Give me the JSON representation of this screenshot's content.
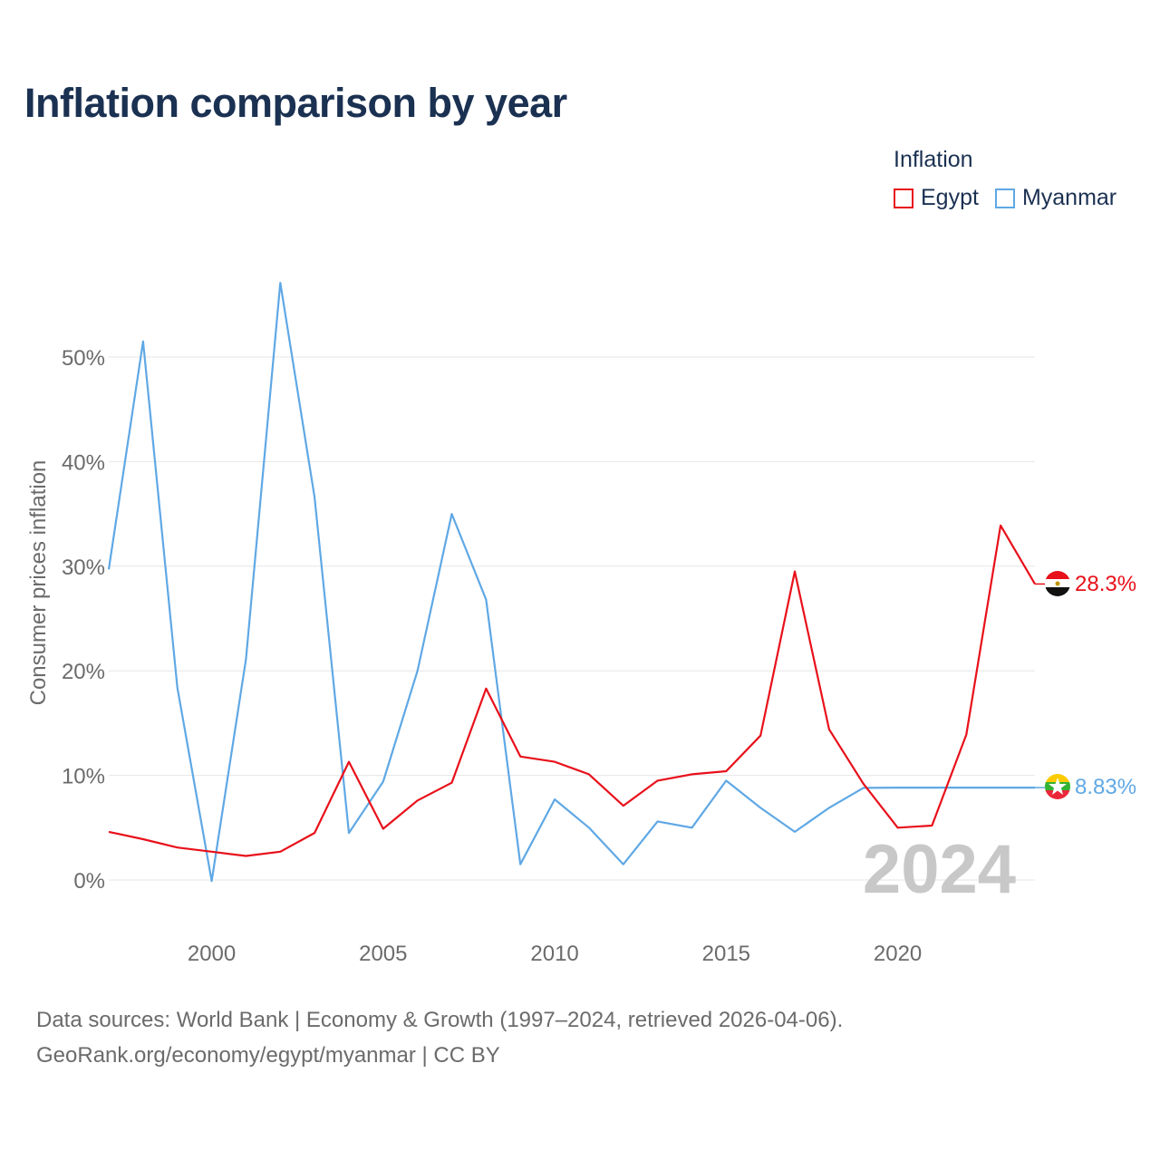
{
  "title": "Inflation comparison by year",
  "legend": {
    "title": "Inflation",
    "items": [
      {
        "name": "Egypt",
        "color": "#e8101a"
      },
      {
        "name": "Myanmar",
        "color": "#5fa8e5"
      }
    ]
  },
  "footer": {
    "line1": "Data sources: World Bank | Economy & Growth (1997–2024, retrieved 2026-04-06).",
    "line2": "GeoRank.org/economy/egypt/myanmar | CC BY"
  },
  "chart_data": {
    "type": "line",
    "ylabel": "Consumer prices inflation",
    "xlabel": "",
    "xlim": [
      1997,
      2024
    ],
    "ylim": [
      -3,
      60
    ],
    "yticks": [
      0,
      10,
      20,
      30,
      40,
      50
    ],
    "ytick_labels": [
      "0%",
      "10%",
      "20%",
      "30%",
      "40%",
      "50%"
    ],
    "xticks": [
      2000,
      2005,
      2010,
      2015,
      2020
    ],
    "xtick_labels": [
      "2000",
      "2005",
      "2010",
      "2015",
      "2020"
    ],
    "year_watermark": "2024",
    "x": [
      1997,
      1998,
      1999,
      2000,
      2001,
      2002,
      2003,
      2004,
      2005,
      2006,
      2007,
      2008,
      2009,
      2010,
      2011,
      2012,
      2013,
      2014,
      2015,
      2016,
      2017,
      2018,
      2019,
      2020,
      2021,
      2022,
      2023,
      2024
    ],
    "series": [
      {
        "name": "Egypt",
        "color": "#e8101a",
        "end_label": "28.3%",
        "values": [
          4.6,
          3.9,
          3.1,
          2.7,
          2.3,
          2.7,
          4.5,
          11.3,
          4.9,
          7.6,
          9.3,
          18.3,
          11.8,
          11.3,
          10.1,
          7.1,
          9.5,
          10.1,
          10.4,
          13.8,
          29.5,
          14.4,
          9.2,
          5.0,
          5.2,
          13.9,
          33.9,
          28.3
        ]
      },
      {
        "name": "Myanmar",
        "color": "#5fa8e5",
        "end_label": "8.83%",
        "values": [
          29.7,
          51.5,
          18.4,
          -0.1,
          21.1,
          57.1,
          36.6,
          4.5,
          9.4,
          20.0,
          35.0,
          26.8,
          1.5,
          7.7,
          5.0,
          1.5,
          5.6,
          5.0,
          9.5,
          6.9,
          4.6,
          6.9,
          8.8,
          8.83,
          8.83,
          8.83,
          8.83,
          8.83
        ]
      }
    ]
  }
}
